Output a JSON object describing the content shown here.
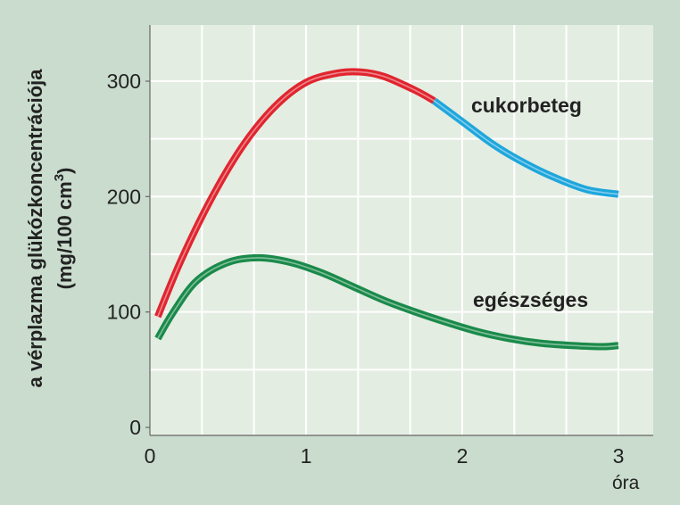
{
  "chart_data": {
    "type": "line",
    "xlabel": "óra",
    "ylabel_line1": "a vérplazma glükózkoncentrációja",
    "ylabel_line2_main": "(mg/100 cm",
    "ylabel_line2_sup": "3",
    "ylabel_line2_end": ")",
    "xlim": [
      0,
      3.3
    ],
    "ylim": [
      0,
      350
    ],
    "xticks": [
      0,
      1,
      2,
      3
    ],
    "yticks": [
      0,
      100,
      200,
      300
    ],
    "grid": true,
    "series": [
      {
        "name": "cukorbeteg",
        "color_early": "#e0252f",
        "color_late": "#1ea6dc",
        "split_x": 1.82,
        "x": [
          0.05,
          0.2,
          0.4,
          0.6,
          0.8,
          1.0,
          1.2,
          1.35,
          1.5,
          1.7,
          1.82,
          2.0,
          2.2,
          2.4,
          2.6,
          2.8,
          3.0
        ],
        "y": [
          96,
          145,
          200,
          245,
          278,
          299,
          307,
          308,
          304,
          292,
          283,
          265,
          245,
          229,
          216,
          206,
          202
        ]
      },
      {
        "name": "egészséges",
        "color": "#1a8a4a",
        "x": [
          0.05,
          0.15,
          0.3,
          0.5,
          0.7,
          0.9,
          1.1,
          1.3,
          1.5,
          1.7,
          1.9,
          2.1,
          2.3,
          2.5,
          2.7,
          2.9,
          3.0
        ],
        "y": [
          77,
          100,
          127,
          143,
          147,
          143,
          134,
          122,
          110,
          100,
          91,
          83,
          77,
          73,
          71,
          70,
          71
        ]
      }
    ]
  }
}
